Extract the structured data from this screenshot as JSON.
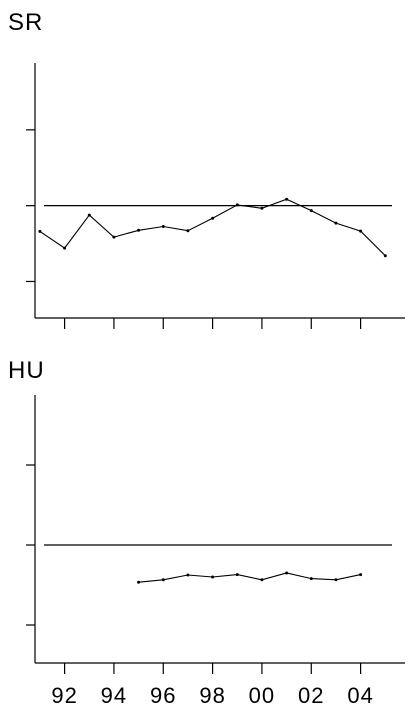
{
  "chart_data": [
    {
      "type": "line",
      "title": "SR",
      "xlim": [
        1990.8,
        2005.8
      ],
      "ylim": [
        0.53,
        1.15
      ],
      "y_ticks": [
        0.6,
        0.8,
        1.0
      ],
      "reference_line": 0.8,
      "x_ticks": [
        1992,
        1994,
        1996,
        1998,
        2000,
        2002,
        2004
      ],
      "grid": false,
      "series": [
        {
          "x": [
            1991,
            1992,
            1993,
            1994,
            1995,
            1996,
            1997,
            1998,
            1999,
            2000,
            2001,
            2002,
            2003,
            2004,
            2005
          ],
          "values": [
            0.732,
            0.688,
            0.775,
            0.717,
            0.735,
            0.745,
            0.734,
            0.767,
            0.802,
            0.793,
            0.817,
            0.787,
            0.754,
            0.733,
            0.668
          ]
        }
      ]
    },
    {
      "type": "line",
      "title": "HU",
      "xlim": [
        1990.8,
        2005.8
      ],
      "ylim": [
        0.53,
        1.15
      ],
      "y_ticks": [
        0.6,
        0.8,
        1.0
      ],
      "reference_line": 0.8,
      "x_ticks": [
        1992,
        1994,
        1996,
        1998,
        2000,
        2002,
        2004
      ],
      "x_tick_labels": [
        "92",
        "94",
        "96",
        "98",
        "00",
        "02",
        "04"
      ],
      "grid": false,
      "series": [
        {
          "x": [
            1995,
            1996,
            1997,
            1998,
            1999,
            2000,
            2001,
            2002,
            2003,
            2004
          ],
          "values": [
            0.707,
            0.713,
            0.725,
            0.72,
            0.726,
            0.713,
            0.73,
            0.716,
            0.713,
            0.726
          ]
        }
      ]
    }
  ]
}
